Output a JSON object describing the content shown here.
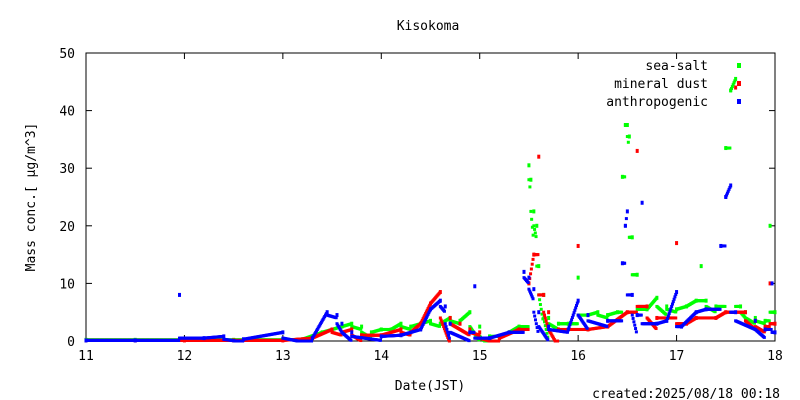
{
  "chart_data": {
    "type": "scatter",
    "title": "Kisokoma",
    "xlabel": "Date(JST)",
    "ylabel": "Mass conc.[ μg/m^3]",
    "xlim": [
      11,
      18
    ],
    "ylim": [
      0,
      50
    ],
    "x_ticks": [
      "11",
      "12",
      "13",
      "14",
      "15",
      "16",
      "17",
      "18"
    ],
    "y_ticks": [
      "0",
      "10",
      "20",
      "30",
      "40",
      "50"
    ],
    "legend_position": "top-right",
    "footer": "created:2025/08/18 00:18",
    "grid": false,
    "colors": {
      "sea-salt": "#00ff00",
      "mineral dust": "#ff0000",
      "anthropogenic": "#0000ff"
    },
    "series": [
      {
        "name": "sea-salt",
        "points": [
          [
            11.0,
            0.2
          ],
          [
            11.5,
            0.2
          ],
          [
            12.0,
            0.2
          ],
          [
            12.5,
            0.2
          ],
          [
            13.0,
            0.2
          ],
          [
            13.2,
            0.3
          ],
          [
            13.4,
            1.5
          ],
          [
            13.5,
            2.0
          ],
          [
            13.6,
            2.5
          ],
          [
            13.7,
            3.0
          ],
          [
            13.8,
            2.5
          ],
          [
            13.9,
            1.5
          ],
          [
            14.0,
            2.0
          ],
          [
            14.1,
            2.0
          ],
          [
            14.2,
            3.0
          ],
          [
            14.3,
            2.5
          ],
          [
            14.4,
            3.0
          ],
          [
            14.5,
            3.5
          ],
          [
            14.6,
            3.0
          ],
          [
            14.7,
            4.0
          ],
          [
            14.8,
            3.5
          ],
          [
            14.9,
            5.0
          ],
          [
            15.0,
            2.5
          ],
          [
            15.1,
            0.8
          ],
          [
            15.2,
            0.8
          ],
          [
            15.3,
            1.5
          ],
          [
            15.4,
            2.5
          ],
          [
            15.5,
            30.5
          ],
          [
            15.52,
            28.0
          ],
          [
            15.55,
            22.5
          ],
          [
            15.58,
            20.0
          ],
          [
            15.6,
            13.0
          ],
          [
            15.65,
            8.0
          ],
          [
            15.7,
            4.0
          ],
          [
            15.8,
            3.0
          ],
          [
            15.9,
            3.0
          ],
          [
            16.0,
            11.0
          ],
          [
            16.1,
            4.5
          ],
          [
            16.2,
            5.0
          ],
          [
            16.3,
            4.5
          ],
          [
            16.4,
            5.0
          ],
          [
            16.45,
            28.5
          ],
          [
            16.48,
            37.5
          ],
          [
            16.5,
            37.5
          ],
          [
            16.52,
            35.5
          ],
          [
            16.55,
            18.0
          ],
          [
            16.6,
            11.5
          ],
          [
            16.7,
            5.5
          ],
          [
            16.8,
            7.5
          ],
          [
            16.9,
            6.0
          ],
          [
            17.0,
            5.5
          ],
          [
            17.1,
            6.0
          ],
          [
            17.2,
            7.0
          ],
          [
            17.25,
            13.0
          ],
          [
            17.3,
            7.0
          ],
          [
            17.4,
            6.0
          ],
          [
            17.5,
            33.5
          ],
          [
            17.55,
            43.5
          ],
          [
            17.6,
            45.5
          ],
          [
            17.65,
            6.0
          ],
          [
            17.7,
            5.0
          ],
          [
            17.8,
            4.0
          ],
          [
            17.9,
            3.5
          ],
          [
            17.95,
            20.0
          ],
          [
            18.0,
            5.0
          ]
        ]
      },
      {
        "name": "mineral dust",
        "points": [
          [
            11.0,
            0.1
          ],
          [
            11.5,
            0.1
          ],
          [
            12.0,
            0.1
          ],
          [
            12.5,
            0.1
          ],
          [
            13.0,
            0.1
          ],
          [
            13.3,
            0.5
          ],
          [
            13.5,
            2.0
          ],
          [
            13.6,
            1.5
          ],
          [
            13.7,
            2.0
          ],
          [
            13.8,
            1.0
          ],
          [
            14.0,
            1.0
          ],
          [
            14.2,
            2.0
          ],
          [
            14.3,
            1.5
          ],
          [
            14.4,
            3.0
          ],
          [
            14.5,
            6.5
          ],
          [
            14.6,
            8.5
          ],
          [
            14.7,
            4.0
          ],
          [
            14.8,
            3.0
          ],
          [
            14.9,
            2.0
          ],
          [
            15.0,
            1.5
          ],
          [
            15.2,
            0.5
          ],
          [
            15.4,
            2.0
          ],
          [
            15.5,
            10.0
          ],
          [
            15.55,
            15.0
          ],
          [
            15.6,
            32.0
          ],
          [
            15.65,
            8.0
          ],
          [
            15.7,
            5.0
          ],
          [
            15.8,
            2.0
          ],
          [
            16.0,
            16.5
          ],
          [
            16.1,
            2.0
          ],
          [
            16.3,
            2.5
          ],
          [
            16.5,
            5.0
          ],
          [
            16.6,
            33.0
          ],
          [
            16.7,
            6.0
          ],
          [
            16.8,
            4.0
          ],
          [
            17.0,
            17.0
          ],
          [
            17.1,
            3.0
          ],
          [
            17.2,
            4.0
          ],
          [
            17.4,
            4.0
          ],
          [
            17.5,
            5.0
          ],
          [
            17.6,
            44.0
          ],
          [
            17.7,
            5.0
          ],
          [
            17.8,
            3.5
          ],
          [
            17.9,
            2.5
          ],
          [
            17.95,
            10.0
          ],
          [
            18.0,
            3.0
          ]
        ]
      },
      {
        "name": "anthropogenic",
        "points": [
          [
            11.0,
            0.1
          ],
          [
            11.5,
            0.1
          ],
          [
            11.95,
            8.0
          ],
          [
            12.2,
            0.5
          ],
          [
            12.4,
            0.8
          ],
          [
            12.6,
            0.3
          ],
          [
            13.0,
            1.5
          ],
          [
            13.3,
            0.5
          ],
          [
            13.45,
            5.0
          ],
          [
            13.55,
            4.5
          ],
          [
            13.6,
            3.0
          ],
          [
            13.7,
            1.5
          ],
          [
            14.0,
            0.8
          ],
          [
            14.2,
            1.0
          ],
          [
            14.4,
            2.0
          ],
          [
            14.5,
            5.5
          ],
          [
            14.6,
            7.0
          ],
          [
            14.65,
            6.0
          ],
          [
            14.7,
            3.0
          ],
          [
            14.9,
            1.5
          ],
          [
            14.95,
            9.5
          ],
          [
            15.1,
            0.5
          ],
          [
            15.3,
            1.5
          ],
          [
            15.45,
            12.0
          ],
          [
            15.5,
            11.0
          ],
          [
            15.55,
            9.0
          ],
          [
            15.6,
            5.0
          ],
          [
            15.7,
            2.5
          ],
          [
            15.9,
            2.0
          ],
          [
            16.0,
            7.0
          ],
          [
            16.1,
            4.5
          ],
          [
            16.3,
            3.5
          ],
          [
            16.45,
            13.5
          ],
          [
            16.48,
            20.0
          ],
          [
            16.5,
            22.5
          ],
          [
            16.55,
            8.0
          ],
          [
            16.6,
            4.5
          ],
          [
            16.65,
            24.0
          ],
          [
            16.8,
            3.0
          ],
          [
            16.9,
            3.5
          ],
          [
            17.0,
            8.5
          ],
          [
            17.05,
            2.5
          ],
          [
            17.2,
            5.0
          ],
          [
            17.3,
            5.5
          ],
          [
            17.45,
            16.5
          ],
          [
            17.5,
            25.0
          ],
          [
            17.55,
            27.0
          ],
          [
            17.6,
            5.0
          ],
          [
            17.8,
            3.5
          ],
          [
            17.9,
            2.0
          ],
          [
            17.97,
            10.0
          ],
          [
            18.0,
            1.5
          ]
        ]
      }
    ]
  }
}
